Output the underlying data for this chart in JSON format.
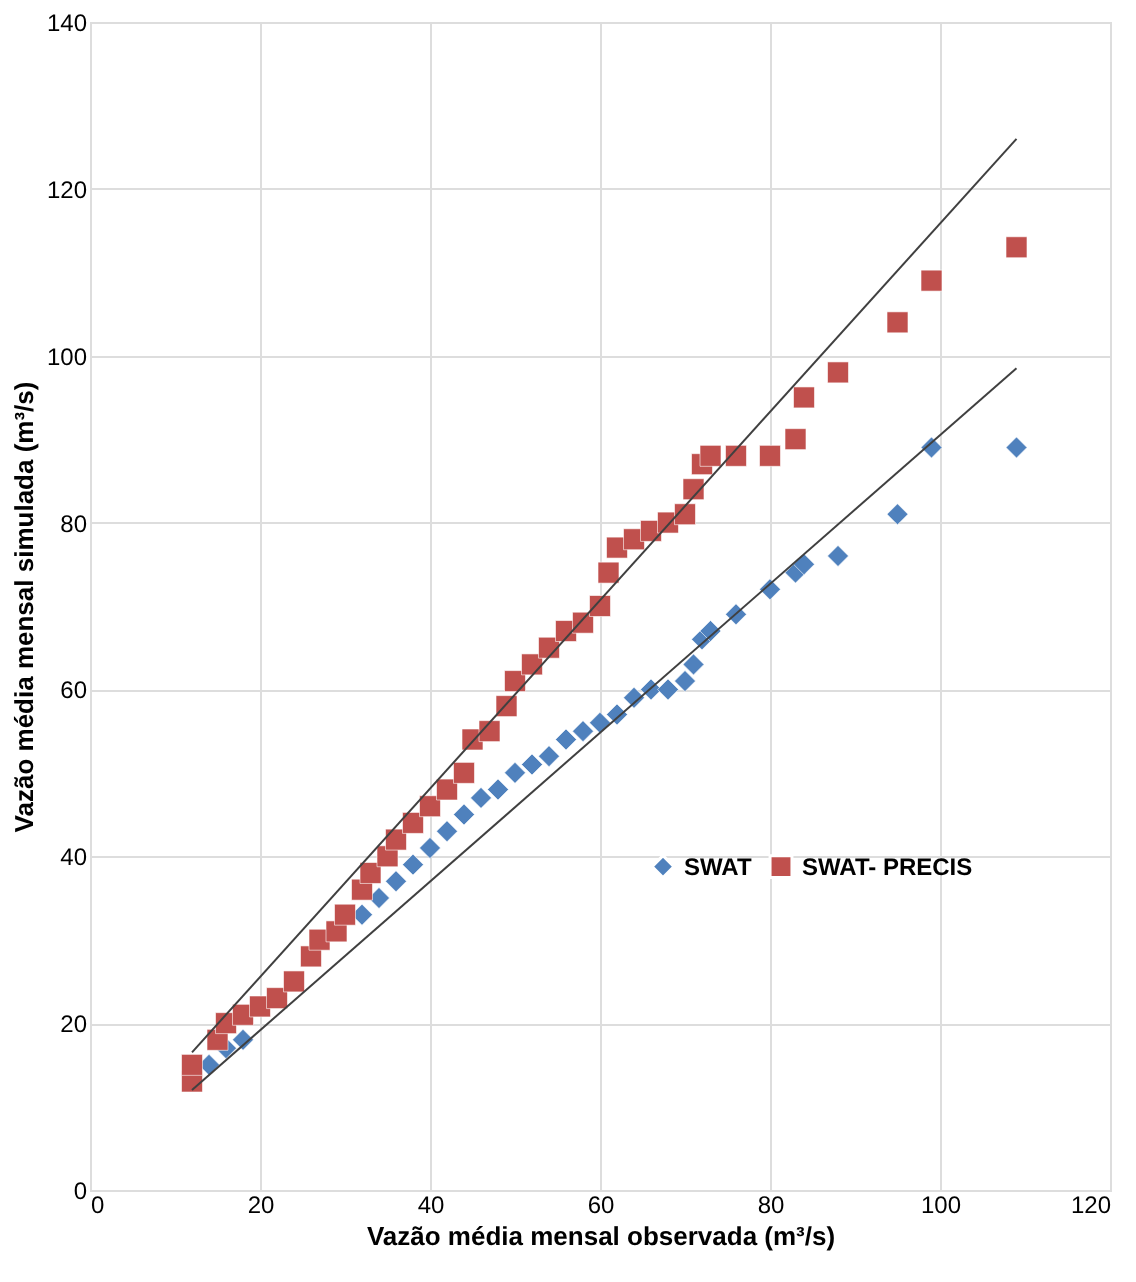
{
  "chart_data": {
    "type": "scatter",
    "xlabel": "Vazão média mensal observada (m³/s)",
    "ylabel": "Vazão média mensal simulada (m³/s)",
    "xlim": [
      0,
      120
    ],
    "xticks": [
      0,
      20,
      40,
      60,
      80,
      100,
      120
    ],
    "ylim": [
      0,
      140
    ],
    "yticks": [
      0,
      20,
      40,
      60,
      80,
      100,
      120,
      140
    ],
    "grid": true,
    "legend": "right",
    "series": [
      {
        "name": "SWAT",
        "color": "#4f81bd",
        "marker": "diamond",
        "x": [
          14,
          16,
          18,
          32,
          34,
          36,
          38,
          40,
          42,
          44,
          46,
          48,
          50,
          52,
          54,
          56,
          58,
          60,
          62,
          64,
          66,
          68,
          70,
          71,
          72,
          73,
          76,
          80,
          83,
          84,
          88,
          95,
          99,
          109
        ],
        "values": [
          15,
          17,
          18,
          33,
          35,
          37,
          39,
          41,
          43,
          45,
          47,
          48,
          50,
          51,
          52,
          54,
          55,
          56,
          57,
          59,
          60,
          60,
          61,
          63,
          66,
          67,
          69,
          72,
          74,
          75,
          76,
          81,
          89,
          89
        ]
      },
      {
        "name": "SWAT- PRECIS",
        "color": "#c0504d",
        "marker": "square",
        "x": [
          12,
          12,
          15,
          16,
          18,
          20,
          22,
          24,
          26,
          27,
          29,
          30,
          32,
          33,
          35,
          36,
          38,
          40,
          42,
          44,
          45,
          47,
          49,
          50,
          52,
          54,
          56,
          58,
          60,
          61,
          62,
          64,
          66,
          68,
          70,
          71,
          72,
          73,
          76,
          80,
          83,
          84,
          88,
          95,
          99,
          109
        ],
        "values": [
          13,
          15,
          18,
          20,
          21,
          22,
          23,
          25,
          28,
          30,
          31,
          33,
          36,
          38,
          40,
          42,
          44,
          46,
          48,
          50,
          54,
          55,
          58,
          61,
          63,
          65,
          67,
          68,
          70,
          74,
          77,
          78,
          79,
          80,
          81,
          84,
          87,
          88,
          88,
          88,
          90,
          95,
          98,
          104,
          109,
          113
        ]
      },
      {
        "type": "line",
        "color": "#404040",
        "line_style": "solid",
        "x": [
          12,
          109
        ],
        "values": [
          12,
          98.5
        ]
      },
      {
        "type": "line",
        "color": "#404040",
        "line_style": "solid",
        "x": [
          12,
          109
        ],
        "values": [
          16.5,
          126
        ]
      }
    ]
  }
}
